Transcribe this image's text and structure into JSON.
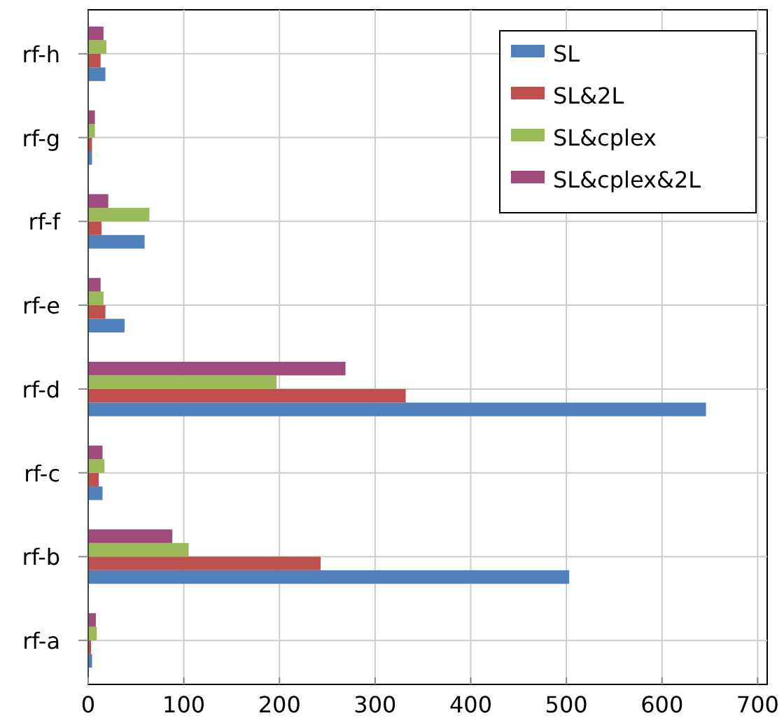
{
  "chart_data": {
    "type": "bar",
    "orientation": "horizontal",
    "categories": [
      "rf-h",
      "rf-g",
      "rf-f",
      "rf-e",
      "rf-d",
      "rf-c",
      "rf-b",
      "rf-a"
    ],
    "series": [
      {
        "name": "SL",
        "color": "#4f81bd",
        "values": [
          18,
          4,
          59,
          38,
          646,
          15,
          503,
          4
        ]
      },
      {
        "name": "SL&2L",
        "color": "#c0504d",
        "values": [
          13,
          4,
          14,
          18,
          332,
          11,
          243,
          3
        ]
      },
      {
        "name": "SL&cplex",
        "color": "#9bbb59",
        "values": [
          19,
          7,
          64,
          16,
          197,
          17,
          105,
          9
        ]
      },
      {
        "name": "SL&cplex&2L",
        "color": "#9f4c7c",
        "values": [
          16,
          7,
          21,
          13,
          269,
          15,
          88,
          8
        ]
      }
    ],
    "xlim": [
      0,
      710
    ],
    "xticks": [
      0,
      100,
      200,
      300,
      400,
      500,
      600,
      700
    ],
    "grid": true,
    "legend": "top right"
  }
}
